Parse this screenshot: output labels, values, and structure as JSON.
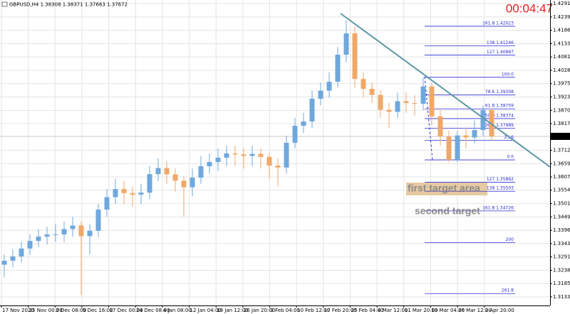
{
  "chart_data": {
    "type": "candlestick",
    "title": "GBPUSD,H4 1.38308 1.38371 1.37663 1.37672",
    "timer": "00:04:47",
    "up_color": "#6fa8dc",
    "down_color": "#f0a868",
    "grid": true,
    "ylim": [
      1.3099,
      1.4306
    ],
    "yticks": [
      1.42915,
      {
        "value": 1.4239,
        "label": "1.42390"
      },
      1.41865,
      1.41335,
      {
        "value": 1.4081,
        "label": "1.40810"
      },
      {
        "value": 1.4028,
        "label": "1.40280"
      },
      1.39755,
      {
        "value": 1.3923,
        "label": "1.39230"
      },
      {
        "value": 1.387,
        "label": "1.38700"
      },
      1.38175,
      {
        "value": 1.3712,
        "label": "1.37120"
      },
      1.36595,
      {
        "value": 1.3607,
        "label": "1.36070"
      },
      1.35545,
      1.35015,
      {
        "value": 1.3449,
        "label": "1.34490"
      },
      {
        "value": 1.3396,
        "label": "1.33960"
      },
      1.33435,
      {
        "value": 1.3291,
        "label": "1.32910"
      },
      {
        "value": 1.3238,
        "label": "1.32380"
      },
      1.31855,
      {
        "value": 1.3133,
        "label": "1.31330"
      }
    ],
    "current_price": 1.37672,
    "x_labels": [
      "17 Nov 2020",
      "25 Nov 00:00",
      "2 Dec 08:00",
      "9 Dec 16:00",
      "17 Dec 00:00",
      "24 Dec 08:00",
      "4 Jan 08:00",
      "12 Jan 04:00",
      "19 Jan 12:00",
      "26 Jan 20:00",
      "3 Feb 04:00",
      "10 Feb 12:00",
      "17 Feb 20:00",
      "25 Feb 04:00",
      "4 Mar 12:00",
      "11 Mar 20:00",
      "19 Mar 04:00",
      "26 Mar 12:00",
      "2 Apr 20:00"
    ],
    "open": [
      1.326,
      1.3276,
      1.3293,
      1.3324,
      1.3354,
      1.3371,
      1.338,
      1.338,
      1.3401,
      1.3415,
      1.3373,
      1.3394,
      1.3478,
      1.3527,
      1.3559,
      1.3543,
      1.3537,
      1.3545,
      1.3618,
      1.3642,
      1.3617,
      1.3592,
      1.3566,
      1.3604,
      1.3649,
      1.3666,
      1.3683,
      1.37,
      1.3696,
      1.369,
      1.3698,
      1.3686,
      1.3652,
      1.3644,
      1.3742,
      1.3809,
      1.3826,
      1.3916,
      1.3948,
      1.3983,
      1.409,
      1.4174,
      1.3994,
      1.3955,
      1.3931,
      1.3872,
      1.3864,
      1.3906,
      1.3899,
      1.3896,
      1.3964,
      1.3846,
      1.3767,
      1.3674,
      1.3771,
      1.3763,
      1.3792,
      1.3871
    ],
    "high": [
      1.33,
      1.332,
      1.335,
      1.338,
      1.34,
      1.341,
      1.342,
      1.343,
      1.345,
      1.343,
      1.342,
      1.35,
      1.356,
      1.36,
      1.359,
      1.357,
      1.358,
      1.365,
      1.368,
      1.367,
      1.364,
      1.361,
      1.364,
      1.369,
      1.37,
      1.372,
      1.373,
      1.373,
      1.372,
      1.373,
      1.372,
      1.37,
      1.368,
      1.377,
      1.384,
      1.386,
      1.395,
      1.398,
      1.402,
      1.412,
      1.4225,
      1.42,
      1.402,
      1.398,
      1.395,
      1.39,
      1.394,
      1.394,
      1.393,
      1.4,
      1.398,
      1.387,
      1.379,
      1.379,
      1.38,
      1.383,
      1.389,
      1.388
    ],
    "low": [
      1.321,
      1.325,
      1.327,
      1.33,
      1.333,
      1.334,
      1.335,
      1.335,
      1.337,
      1.314,
      1.33,
      1.337,
      1.345,
      1.35,
      1.35,
      1.349,
      1.35,
      1.352,
      1.359,
      1.358,
      1.355,
      1.345,
      1.353,
      1.358,
      1.362,
      1.363,
      1.365,
      1.365,
      1.364,
      1.365,
      1.364,
      1.36,
      1.357,
      1.362,
      1.372,
      1.378,
      1.38,
      1.389,
      1.392,
      1.396,
      1.406,
      1.396,
      1.392,
      1.39,
      1.384,
      1.38,
      1.384,
      1.386,
      1.385,
      1.387,
      1.381,
      1.373,
      1.3665,
      1.3665,
      1.372,
      1.374,
      1.377,
      1.375
    ],
    "close": [
      1.3276,
      1.3293,
      1.3324,
      1.3354,
      1.3371,
      1.338,
      1.338,
      1.3401,
      1.3415,
      1.3373,
      1.3394,
      1.3478,
      1.3527,
      1.3559,
      1.3543,
      1.3537,
      1.3545,
      1.3618,
      1.3642,
      1.3617,
      1.3592,
      1.3566,
      1.3604,
      1.3649,
      1.3666,
      1.3683,
      1.37,
      1.3696,
      1.369,
      1.3698,
      1.3686,
      1.3652,
      1.3644,
      1.3742,
      1.3809,
      1.3826,
      1.3916,
      1.3948,
      1.3983,
      1.409,
      1.4174,
      1.3994,
      1.3955,
      1.3931,
      1.3872,
      1.3864,
      1.3906,
      1.3899,
      1.3896,
      1.3964,
      1.3846,
      1.3767,
      1.3674,
      1.3771,
      1.3763,
      1.3792,
      1.3871,
      1.37672
    ],
    "fib_levels": [
      {
        "label": "161.8  1.42023",
        "value": 1.42023
      },
      {
        "label": "138  1.41246",
        "value": 1.41246
      },
      {
        "label": "127  1.40887",
        "value": 1.40887
      },
      {
        "label": "100.0",
        "value": 1.40006
      },
      {
        "label": "78.6  1.39308",
        "value": 1.39308
      },
      {
        "label": "61.8  1.38759",
        "value": 1.38759
      },
      {
        "label": "50.0  1.38374",
        "value": 1.38374
      },
      {
        "label": "38.2  1.37989",
        "value": 1.37989
      },
      {
        "label": "23.6",
        "value": 1.37512
      },
      {
        "label": "0.0",
        "value": 1.36742
      },
      {
        "label": "127  1.35862",
        "value": 1.35862
      },
      {
        "label": "138  1.35503",
        "value": 1.35503
      },
      {
        "label": "161.8  1.34726",
        "value": 1.34726
      },
      {
        "label": "200",
        "value": 1.33478
      },
      {
        "label": "261.8",
        "value": 1.31461
      }
    ],
    "annotations": [
      "first target area",
      "second target"
    ]
  }
}
